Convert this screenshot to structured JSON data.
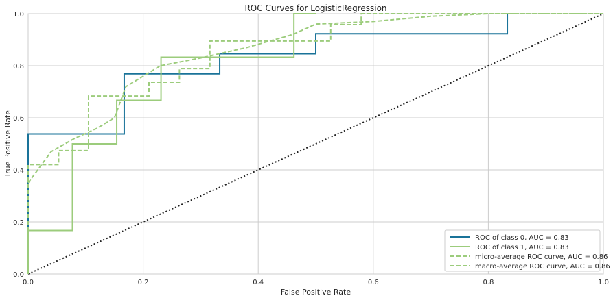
{
  "chart_data": {
    "type": "line",
    "title": "ROC Curves for LogisticRegression",
    "xlabel": "False Positive Rate",
    "ylabel": "True Positive Rate",
    "xlim": [
      0,
      1
    ],
    "ylim": [
      0,
      1
    ],
    "xticks": [
      "0.0",
      "0.2",
      "0.4",
      "0.6",
      "0.8",
      "1.0"
    ],
    "yticks": [
      "0.0",
      "0.2",
      "0.4",
      "0.6",
      "0.8",
      "1.0"
    ],
    "grid": true,
    "legend_position": "lower-right",
    "series": [
      {
        "name": "ROC of class 0, AUC = 0.83",
        "color": "#1a7399",
        "style": "solid",
        "x": [
          0,
          0,
          0.167,
          0.167,
          0.333,
          0.333,
          0.5,
          0.5,
          0.833,
          0.833
        ],
        "y": [
          0,
          0.538,
          0.538,
          0.769,
          0.769,
          0.846,
          0.846,
          0.923,
          0.923,
          1.0
        ]
      },
      {
        "name": "ROC of class 1, AUC = 0.83",
        "color": "#9ccc7c",
        "style": "solid",
        "x": [
          0,
          0,
          0.077,
          0.077,
          0.154,
          0.154,
          0.167,
          0.167,
          0.231,
          0.231,
          0.462,
          0.462,
          0.5
        ],
        "y": [
          0,
          0.167,
          0.167,
          0.5,
          0.5,
          0.667,
          0.667,
          0.667,
          0.667,
          0.833,
          0.833,
          1.0,
          1.0
        ]
      },
      {
        "name": "micro-average ROC curve, AUC = 0.86",
        "color": "#9ccc7c",
        "style": "dashed",
        "x": [
          0,
          0.04,
          0.08,
          0.12,
          0.15,
          0.17,
          0.2,
          0.23,
          0.3,
          0.38,
          0.46,
          0.5,
          0.6,
          0.7,
          0.8,
          1.0
        ],
        "y": [
          0.35,
          0.47,
          0.52,
          0.56,
          0.6,
          0.72,
          0.76,
          0.8,
          0.83,
          0.87,
          0.92,
          0.96,
          0.97,
          0.99,
          1.0,
          1.0
        ]
      },
      {
        "name": "macro-average ROC curve, AUC = 0.86",
        "color": "#9ccc7c",
        "style": "dashed",
        "x": [
          0,
          0,
          0.053,
          0.053,
          0.105,
          0.105,
          0.158,
          0.158,
          0.21,
          0.21,
          0.263,
          0.263,
          0.316,
          0.316,
          0.526,
          0.526,
          0.579,
          0.579,
          0.7,
          1.0
        ],
        "y": [
          0,
          0.42,
          0.42,
          0.474,
          0.474,
          0.684,
          0.684,
          0.684,
          0.684,
          0.737,
          0.737,
          0.789,
          0.789,
          0.895,
          0.895,
          0.958,
          0.958,
          1.0,
          1.0,
          1.0
        ]
      }
    ],
    "reference_line": {
      "x": [
        0,
        1
      ],
      "y": [
        0,
        1
      ],
      "color": "#222222",
      "style": "dotted"
    }
  }
}
